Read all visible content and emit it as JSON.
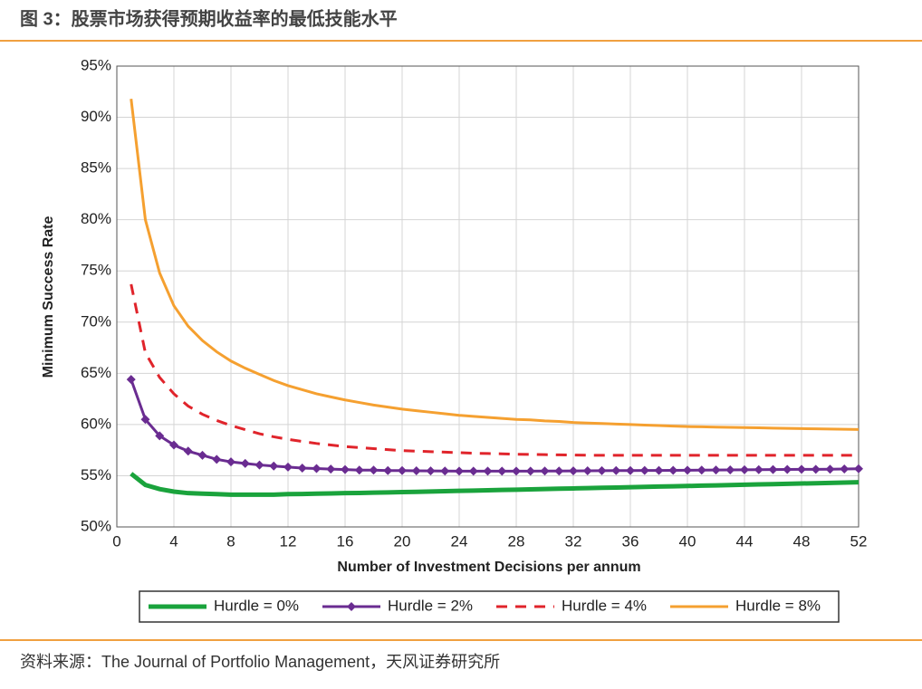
{
  "header": {
    "title": "图 3：股票市场获得预期收益率的最低技能水平"
  },
  "footer": {
    "source": "资料来源：The Journal of Portfolio Management，天风证券研究所"
  },
  "chart_data": {
    "type": "line",
    "x_label": "Number of Investment Decisions per annum",
    "y_label": "Minimum Success Rate",
    "x": [
      1,
      2,
      3,
      4,
      5,
      6,
      7,
      8,
      9,
      10,
      11,
      12,
      13,
      14,
      15,
      16,
      17,
      18,
      19,
      20,
      21,
      22,
      23,
      24,
      25,
      26,
      27,
      28,
      29,
      30,
      31,
      32,
      33,
      34,
      35,
      36,
      37,
      38,
      39,
      40,
      41,
      42,
      43,
      44,
      45,
      46,
      47,
      48,
      49,
      50,
      51,
      52
    ],
    "xlim": [
      0,
      52
    ],
    "xticks": [
      0,
      4,
      8,
      12,
      16,
      20,
      24,
      28,
      32,
      36,
      40,
      44,
      48,
      52
    ],
    "ylim": [
      50,
      95
    ],
    "yticks": [
      {
        "value": 50,
        "label": "50%"
      },
      {
        "value": 55,
        "label": "55%"
      },
      {
        "value": 60,
        "label": "60%"
      },
      {
        "value": 65,
        "label": "65%"
      },
      {
        "value": 70,
        "label": "70%"
      },
      {
        "value": 75,
        "label": "75%"
      },
      {
        "value": 80,
        "label": "80%"
      },
      {
        "value": 85,
        "label": "85%"
      },
      {
        "value": 90,
        "label": "90%"
      },
      {
        "value": 95,
        "label": "95%"
      }
    ],
    "grid": true,
    "legend": "bottom",
    "series": [
      {
        "name": "Hurdle = 0%",
        "color": "#1aa33c",
        "line_style": "solid",
        "values": [
          55.2,
          54.1,
          53.7,
          53.45,
          53.3,
          53.25,
          53.2,
          53.15,
          53.15,
          53.15,
          53.15,
          53.2,
          53.22,
          53.25,
          53.27,
          53.3,
          53.32,
          53.35,
          53.37,
          53.4,
          53.43,
          53.46,
          53.49,
          53.52,
          53.55,
          53.58,
          53.61,
          53.64,
          53.67,
          53.7,
          53.73,
          53.76,
          53.79,
          53.82,
          53.85,
          53.88,
          53.91,
          53.94,
          53.97,
          54.0,
          54.03,
          54.06,
          54.09,
          54.12,
          54.15,
          54.18,
          54.21,
          54.24,
          54.27,
          54.3,
          54.33,
          54.36
        ]
      },
      {
        "name": "Hurdle = 2%",
        "color": "#6a2c91",
        "line_style": "solid",
        "marker": "diamond",
        "values": [
          64.4,
          60.5,
          58.9,
          58.0,
          57.4,
          57.0,
          56.6,
          56.35,
          56.2,
          56.05,
          55.95,
          55.85,
          55.75,
          55.7,
          55.65,
          55.6,
          55.55,
          55.55,
          55.5,
          55.5,
          55.48,
          55.47,
          55.46,
          55.45,
          55.45,
          55.45,
          55.45,
          55.45,
          55.45,
          55.46,
          55.46,
          55.47,
          55.48,
          55.49,
          55.5,
          55.5,
          55.51,
          55.52,
          55.53,
          55.54,
          55.55,
          55.56,
          55.57,
          55.58,
          55.59,
          55.6,
          55.61,
          55.62,
          55.63,
          55.64,
          55.66,
          55.68
        ]
      },
      {
        "name": "Hurdle = 4%",
        "color": "#e0242b",
        "line_style": "dashed",
        "values": [
          73.7,
          67.0,
          64.6,
          63.0,
          61.8,
          61.0,
          60.4,
          59.9,
          59.5,
          59.1,
          58.8,
          58.55,
          58.35,
          58.15,
          58.0,
          57.85,
          57.75,
          57.65,
          57.55,
          57.45,
          57.4,
          57.35,
          57.3,
          57.25,
          57.2,
          57.17,
          57.14,
          57.1,
          57.08,
          57.06,
          57.04,
          57.02,
          57.0,
          57.0,
          57.0,
          57.0,
          57.0,
          57.0,
          57.0,
          57.0,
          57.0,
          57.0,
          57.0,
          57.0,
          57.0,
          57.0,
          57.0,
          57.0,
          57.0,
          57.0,
          57.0,
          57.0
        ]
      },
      {
        "name": "Hurdle = 8%",
        "color": "#f5a030",
        "line_style": "solid",
        "values": [
          91.8,
          80.0,
          74.8,
          71.6,
          69.6,
          68.2,
          67.1,
          66.2,
          65.5,
          64.9,
          64.3,
          63.8,
          63.4,
          63.0,
          62.7,
          62.4,
          62.15,
          61.9,
          61.7,
          61.5,
          61.35,
          61.2,
          61.05,
          60.9,
          60.8,
          60.7,
          60.6,
          60.5,
          60.45,
          60.35,
          60.3,
          60.2,
          60.15,
          60.1,
          60.05,
          60.0,
          59.95,
          59.9,
          59.85,
          59.8,
          59.78,
          59.75,
          59.72,
          59.7,
          59.68,
          59.65,
          59.62,
          59.6,
          59.58,
          59.56,
          59.54,
          59.52
        ]
      }
    ]
  }
}
